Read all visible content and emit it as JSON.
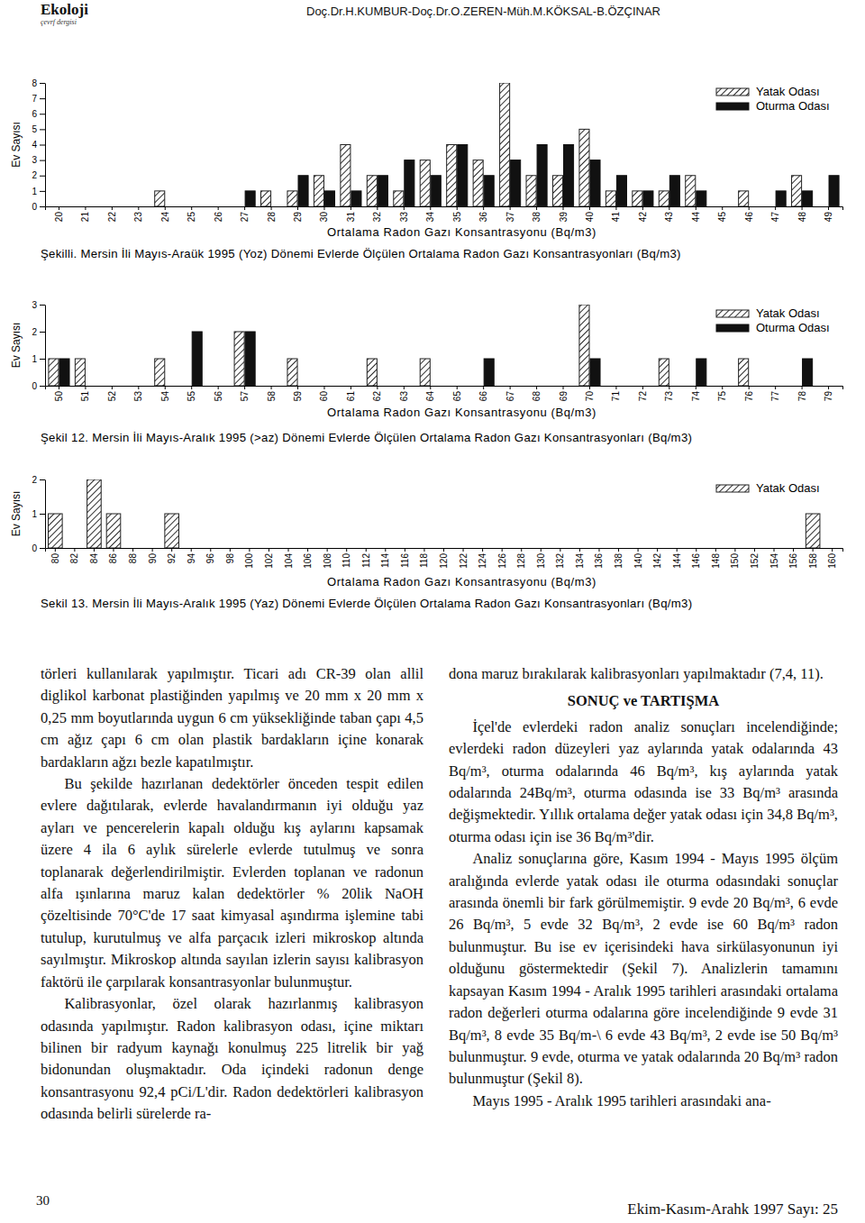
{
  "header": {
    "journal": "Ekoloji",
    "subtitle": "çevrf dergisi",
    "authors": "Doç.Dr.H.KUMBUR-Doç.Dr.O.ZEREN-Müh.M.KÖKSAL-B.ÖZÇINAR"
  },
  "chart_data": [
    {
      "type": "bar",
      "title": "Şekilli. Mersin İli Mayıs-Araük 1995 (Yoz) Dönemi Evlerde Ölçülen Ortalama Radon Gazı Konsantrasyonları (Bq/m3)",
      "x_label": "Ortalama Radon Gazı Konsantrasyonu (Bq/m3)",
      "y_label": "Ev Sayısı",
      "categories": [
        "20",
        "21",
        "22",
        "23",
        "24",
        "25",
        "26",
        "27",
        "28",
        "29",
        "30",
        "31",
        "32",
        "33",
        "34",
        "35",
        "36",
        "37",
        "38",
        "39",
        "40",
        "41",
        "42",
        "43",
        "44",
        "45",
        "46",
        "47",
        "48",
        "49"
      ],
      "series": [
        {
          "name": "Yatak Odası",
          "color": "#222222",
          "line_style": "hatched",
          "values": [
            0,
            0,
            0,
            0,
            1,
            0,
            0,
            0,
            1,
            1,
            2,
            4,
            2,
            1,
            3,
            4,
            3,
            8,
            2,
            2,
            5,
            1,
            1,
            1,
            2,
            0,
            1,
            0,
            2,
            0
          ]
        },
        {
          "name": "Oturma Odası",
          "color": "#111111",
          "line_style": "solid",
          "values": [
            0,
            0,
            0,
            0,
            0,
            0,
            0,
            1,
            0,
            2,
            1,
            1,
            2,
            3,
            2,
            4,
            2,
            3,
            4,
            4,
            3,
            2,
            1,
            2,
            1,
            0,
            0,
            1,
            1,
            2
          ]
        }
      ],
      "ylim": [
        0,
        8
      ],
      "yticks": [
        0,
        1,
        2,
        3,
        4,
        5,
        6,
        7,
        8
      ],
      "grid": false,
      "legend": "top-right"
    },
    {
      "type": "bar",
      "title": "Şekil 12. Mersin İli Mayıs-Aralık 1995 (>az) Dönemi Evlerde Ölçülen Ortalama Radon Gazı Konsantrasyonları (Bq/m3)",
      "x_label": "Ortalama Radon Gazı Konsantrasyonu (Bq/m3)",
      "y_label": "Ev Sayısı",
      "categories": [
        "50",
        "51",
        "52",
        "53",
        "54",
        "55",
        "56",
        "57",
        "58",
        "59",
        "60",
        "61",
        "62",
        "63",
        "64",
        "65",
        "66",
        "67",
        "68",
        "69",
        "70",
        "71",
        "72",
        "73",
        "74",
        "75",
        "76",
        "77",
        "78",
        "79"
      ],
      "series": [
        {
          "name": "Yatak Odası",
          "color": "#222222",
          "line_style": "hatched",
          "values": [
            1,
            1,
            0,
            0,
            1,
            0,
            0,
            2,
            0,
            1,
            0,
            0,
            1,
            0,
            1,
            0,
            0,
            0,
            0,
            0,
            3,
            0,
            0,
            1,
            0,
            0,
            1,
            0,
            0,
            0
          ]
        },
        {
          "name": "Oturma Odası",
          "color": "#111111",
          "line_style": "solid",
          "values": [
            1,
            0,
            0,
            0,
            0,
            2,
            0,
            2,
            0,
            0,
            0,
            0,
            0,
            0,
            0,
            0,
            1,
            0,
            0,
            0,
            1,
            0,
            0,
            0,
            1,
            0,
            0,
            0,
            1,
            0
          ]
        }
      ],
      "ylim": [
        0,
        3
      ],
      "yticks": [
        0,
        1,
        2,
        3
      ],
      "grid": false,
      "legend": "top-right"
    },
    {
      "type": "bar",
      "title": "Sekil 13. Mersin İli Mayıs-Aralık 1995 (Yaz) Dönemi Evlerde Ölçülen Ortalama Radon Gazı Konsantrasyonları (Bq/m3)",
      "x_label": "Ortalama Radon Gazı Konsantrasyonu (Bq/m3)",
      "y_label": "Ev Sayısı",
      "categories": [
        "80",
        "82",
        "84",
        "86",
        "88",
        "90",
        "92",
        "94",
        "96",
        "98",
        "100",
        "102",
        "104",
        "106",
        "108",
        "110",
        "112",
        "114",
        "116",
        "118",
        "120",
        "122",
        "124",
        "126",
        "128",
        "130",
        "132",
        "134",
        "136",
        "138",
        "140",
        "142",
        "144",
        "146",
        "148",
        "150",
        "152",
        "154",
        "156",
        "158",
        "160"
      ],
      "series": [
        {
          "name": "Yatak Odası",
          "color": "#222222",
          "line_style": "hatched",
          "values": [
            1,
            0,
            2,
            1,
            0,
            0,
            1,
            0,
            0,
            0,
            0,
            0,
            0,
            0,
            0,
            0,
            0,
            0,
            0,
            0,
            0,
            0,
            0,
            0,
            0,
            0,
            0,
            0,
            0,
            0,
            0,
            0,
            0,
            0,
            0,
            0,
            0,
            0,
            0,
            1,
            0
          ]
        }
      ],
      "ylim": [
        0,
        2
      ],
      "yticks": [
        0,
        1,
        2
      ],
      "grid": false,
      "legend": "top-right"
    }
  ],
  "body": {
    "left": [
      "törleri kullanılarak yapılmıştır. Ticari adı CR-39 olan allil diglikol karbonat plastiğinden yapılmış ve 20 mm x 20 mm x 0,25 mm boyutlarında uygun 6 cm yüksekliğinde taban çapı 4,5 cm ağız çapı 6 cm olan plastik bardakların içine konarak bardakların ağzı bezle kapatılmıştır.",
      "Bu şekilde hazırlanan dedektörler önceden tespit edilen evlere dağıtılarak, evlerde havalandırmanın iyi olduğu yaz ayları ve pencerelerin kapalı olduğu kış aylarını kapsamak üzere 4 ila 6 aylık sürelerle evlerde tutulmuş ve sonra toplanarak değerlendirilmiştir. Evlerden toplanan ve radonun alfa ışınlarına maruz kalan dedektörler % 20lik NaOH çözeltisinde 70°C'de 17 saat kimyasal aşındırma işlemine tabi tutulup, kurutulmuş ve alfa parçacık izleri mikroskop altında sayılmıştır. Mikroskop altında sayılan izlerin sayısı kalibrasyon faktörü ile çarpılarak konsantrasyonlar bulunmuştur.",
      "Kalibrasyonlar, özel olarak hazırlanmış kalibrasyon odasında yapılmıştır. Radon kalibrasyon odası, içine miktarı bilinen bir radyum kaynağı konulmuş 225 litrelik bir yağ bidonundan oluşmaktadır. Oda içindeki radonun denge konsantrasyonu 92,4 pCi/L'dir. Radon dedektörleri kalibrasyon odasında belirli sürelerde ra-"
    ],
    "right": {
      "intro": "dona maruz bırakılarak kalibrasyonları yapılmaktadır (7,4, 11).",
      "heading": "SONUÇ ve TARTIŞMA",
      "paragraphs": [
        "İçel'de evlerdeki radon analiz sonuçları incelendiğinde; evlerdeki radon düzeyleri yaz aylarında yatak odalarında 43 Bq/m³, oturma odalarında 46 Bq/m³, kış aylarında yatak odalarında 24Bq/m³, oturma odasında ise 33 Bq/m³ arasında değişmektedir. Yıllık ortalama değer yatak odası için 34,8 Bq/m³, oturma odası için ise 36 Bq/m³'dir.",
        "Analiz sonuçlarına göre, Kasım 1994 - Mayıs 1995 ölçüm aralığında evlerde yatak odası ile oturma odasındaki sonuçlar arasında önemli bir fark görülmemiştir. 9 evde 20 Bq/m³, 6 evde 26 Bq/m³, 5 evde 32 Bq/m³, 2 evde ise 60 Bq/m³ radon bulunmuştur. Bu ise ev içerisindeki hava sirkülasyonunun iyi olduğunu göstermektedir (Şekil 7). Analizlerin tamamını kapsayan Kasım 1994 - Aralık 1995 tarihleri arasındaki ortalama radon değerleri oturma odalarına göre incelendiğinde 9 evde 31 Bq/m³, 8 evde 35 Bq/m-\\ 6 evde 43 Bq/m³, 2 evde ise 50 Bq/m³ bulunmuştur. 9 evde, oturma ve yatak odalarında 20 Bq/m³ radon bulunmuştur (Şekil 8).",
        "Mayıs 1995 - Aralık 1995 tarihleri arasındaki ana-"
      ]
    }
  },
  "footer": {
    "page": "30",
    "issue": "Ekim-Kasım-Arahk 1997 Sayı: 25"
  }
}
